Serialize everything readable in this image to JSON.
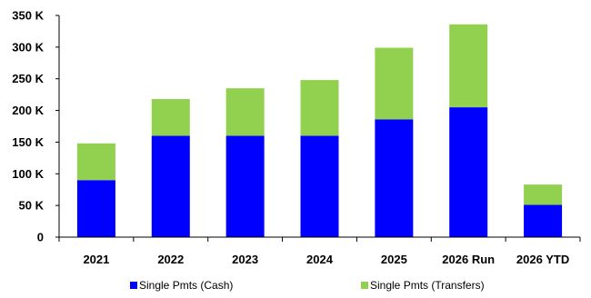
{
  "chart_data": {
    "type": "bar",
    "stacked": true,
    "categories": [
      "2021",
      "2022",
      "2023",
      "2024",
      "2025",
      "2026 Run",
      "2026 YTD"
    ],
    "series": [
      {
        "name": "Single Pmts (Cash)",
        "color": "#0000ff",
        "values": [
          90,
          160,
          160,
          160,
          186,
          205,
          51
        ]
      },
      {
        "name": "Single Pmts (Transfers)",
        "color": "#92d050",
        "values": [
          58,
          58,
          75,
          88,
          113,
          131,
          32
        ]
      }
    ],
    "ylim": [
      0,
      350
    ],
    "yticks": [
      0,
      50,
      100,
      150,
      200,
      250,
      300,
      350
    ],
    "ytick_labels": [
      "0",
      "50 K",
      "100 K",
      "150 K",
      "200 K",
      "250 K",
      "300 K",
      "350 K"
    ],
    "legend_position": "bottom",
    "grid": false
  }
}
